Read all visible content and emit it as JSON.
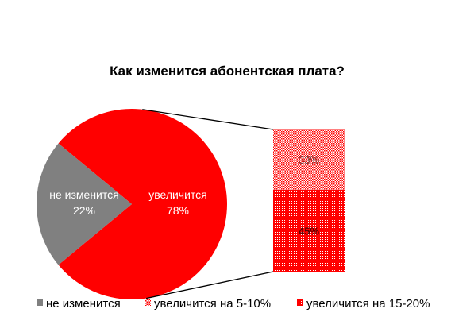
{
  "chart_data": {
    "type": "pie",
    "title": "Как изменится абонентская плата?",
    "slices": [
      {
        "name": "не изменится",
        "value": 22,
        "label": "22%",
        "color": "#808080"
      },
      {
        "name": "увеличится",
        "value": 78,
        "label": "78%",
        "color": "#ff0000"
      }
    ],
    "breakdown": {
      "parent": "увеличится",
      "type": "stacked-bar",
      "segments": [
        {
          "name": "увеличится на 15-20%",
          "value": 45,
          "label": "45%",
          "color": "#ff0000",
          "pattern": "dense-dots"
        },
        {
          "name": "увеличится на 5-10%",
          "value": 33,
          "label": "33%",
          "color": "#ff0000",
          "pattern": "fine-dots"
        }
      ]
    },
    "legend": {
      "position": "bottom",
      "items": [
        "не изменится",
        "увеличится на 5-10%",
        "увеличится на 15-20%"
      ]
    }
  }
}
